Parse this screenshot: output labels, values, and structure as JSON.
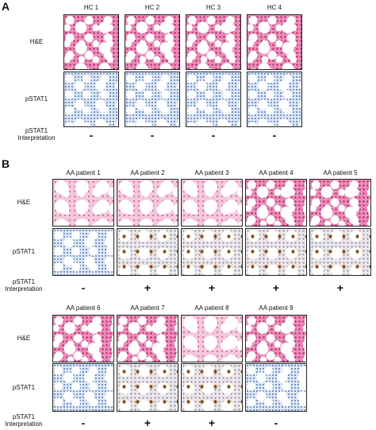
{
  "panel_a": {
    "label": "A",
    "groups": [
      {
        "row_labels": {
          "he": "H&E",
          "pstat1": "pSTAT1",
          "interpretation": [
            "pSTAT1",
            "Interpretation"
          ]
        },
        "samples": [
          {
            "name": "HC 1",
            "interpretation": "-"
          },
          {
            "name": "HC 2",
            "interpretation": "-"
          },
          {
            "name": "HC 3",
            "interpretation": "-"
          },
          {
            "name": "HC 4",
            "interpretation": "-"
          }
        ]
      }
    ]
  },
  "panel_b": {
    "label": "B",
    "groups": [
      {
        "row_labels": {
          "he": "H&E",
          "pstat1": "pSTAT1",
          "interpretation": [
            "pSTAT1",
            "Interpretation"
          ]
        },
        "samples": [
          {
            "name": "AA patient 1",
            "interpretation": "-"
          },
          {
            "name": "AA patient 2",
            "interpretation": "+"
          },
          {
            "name": "AA patient 3",
            "interpretation": "+"
          },
          {
            "name": "AA patient 4",
            "interpretation": "+"
          },
          {
            "name": "AA patient 5",
            "interpretation": "+"
          }
        ]
      },
      {
        "row_labels": {
          "he": "H&E",
          "pstat1": "pSTAT1",
          "interpretation": [
            "pSTAT1",
            "Interpretation"
          ]
        },
        "samples": [
          {
            "name": "AA patient 6",
            "interpretation": "-"
          },
          {
            "name": "AA patient 7",
            "interpretation": "+"
          },
          {
            "name": "AA patient 8",
            "interpretation": "+"
          },
          {
            "name": "AA patient 9",
            "interpretation": "-"
          }
        ]
      }
    ]
  }
}
